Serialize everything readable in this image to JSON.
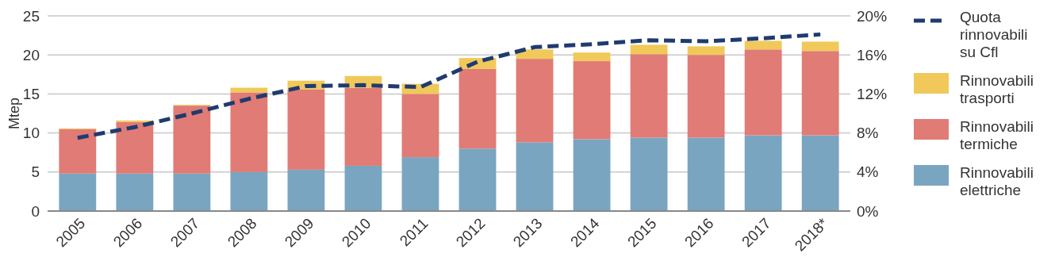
{
  "chart_data": {
    "type": "bar",
    "stacked": true,
    "ylabel": "Mtep",
    "categories": [
      "2005",
      "2006",
      "2007",
      "2008",
      "2009",
      "2010",
      "2011",
      "2012",
      "2013",
      "2014",
      "2015",
      "2016",
      "2017",
      "2018*"
    ],
    "series": [
      {
        "name": "Rinnovabili elettriche",
        "color": "#7aa5c1",
        "values": [
          4.8,
          4.8,
          4.8,
          5.0,
          5.3,
          5.8,
          6.9,
          8.0,
          8.8,
          9.2,
          9.4,
          9.4,
          9.7,
          9.7
        ]
      },
      {
        "name": "Rinnovabili termiche",
        "color": "#e07b75",
        "values": [
          5.7,
          6.6,
          8.7,
          10.2,
          10.3,
          10.0,
          8.1,
          10.2,
          10.7,
          10.0,
          10.7,
          10.6,
          11.0,
          10.8
        ]
      },
      {
        "name": "Rinnovabili trasporti",
        "color": "#f0c95a",
        "values": [
          0.1,
          0.2,
          0.1,
          0.6,
          1.1,
          1.5,
          1.3,
          1.4,
          1.2,
          1.1,
          1.2,
          1.1,
          1.1,
          1.2
        ]
      },
      {
        "name": "Quota rinnovabili su Cfl",
        "type": "line",
        "axis": "y2",
        "color": "#1f3b70",
        "line_style": "dashed",
        "marker": "none",
        "values": [
          7.5,
          8.6,
          10.0,
          11.5,
          12.8,
          12.9,
          12.7,
          15.3,
          16.8,
          17.1,
          17.5,
          17.4,
          17.7,
          18.1
        ]
      }
    ],
    "ylim": [
      0,
      25
    ],
    "yticks": [
      0,
      5,
      10,
      15,
      20,
      25
    ],
    "y2lim": [
      0,
      20
    ],
    "y2ticks": [
      {
        "value": 0,
        "label": "0%"
      },
      {
        "value": 4,
        "label": "4%"
      },
      {
        "value": 8,
        "label": "8%"
      },
      {
        "value": 12,
        "label": "12%"
      },
      {
        "value": 16,
        "label": "16%"
      },
      {
        "value": 20,
        "label": "20%"
      }
    ],
    "grid": "y",
    "legend": "right"
  }
}
